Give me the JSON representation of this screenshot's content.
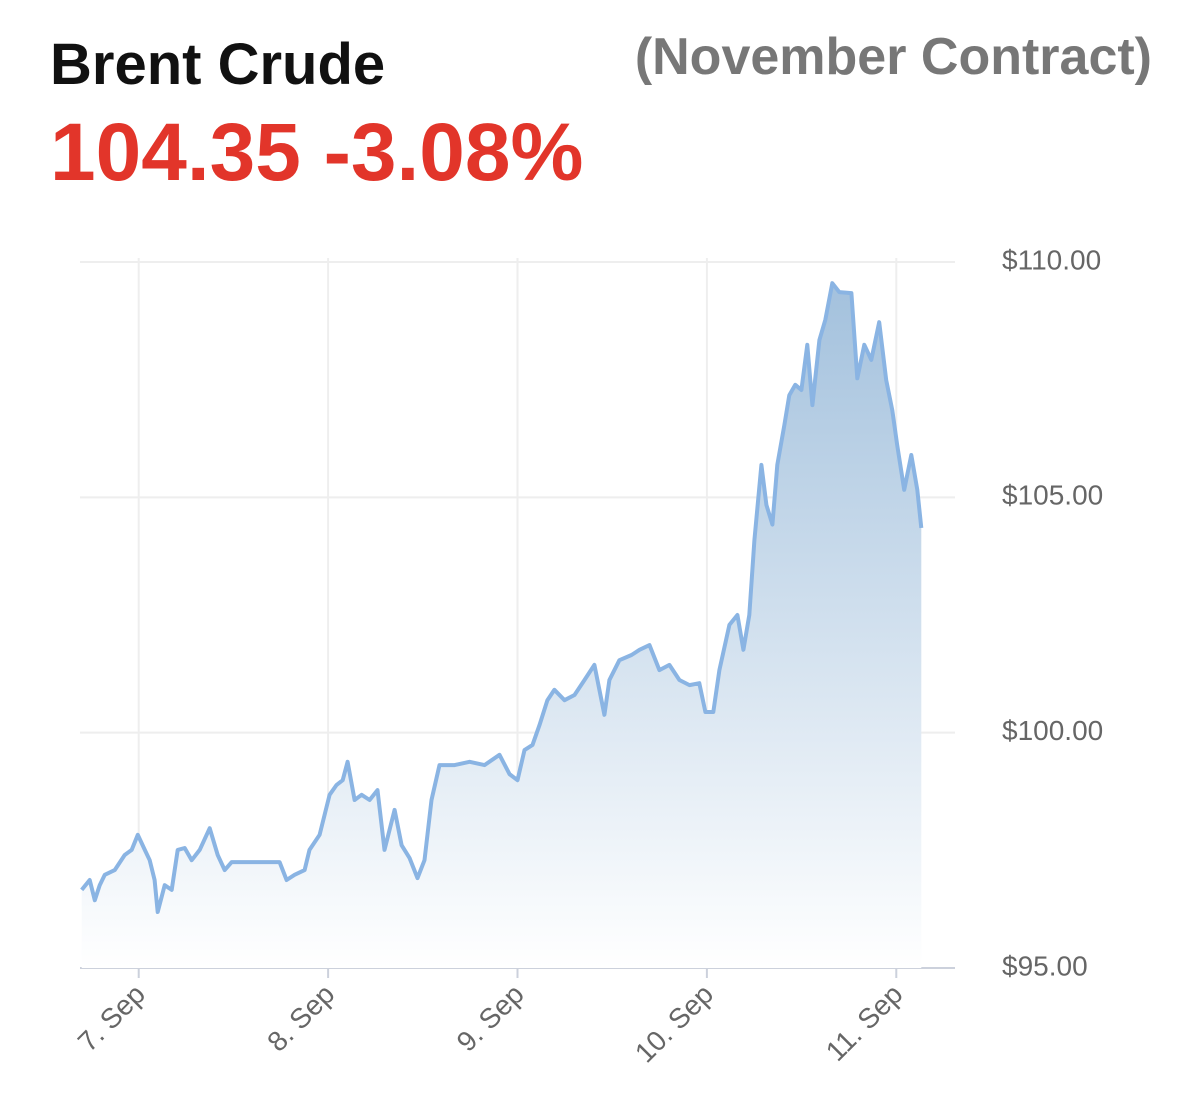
{
  "chart_data": {
    "type": "area",
    "title": "Brent Crude",
    "subtitle": "(November Contract)",
    "price_label": "104.35",
    "change_label": "-3.08%",
    "color": "#8ab4e3",
    "grid": true,
    "xlim": [
      6.69,
      11.31
    ],
    "xticks": [
      {
        "value": 7,
        "label": "7. Sep"
      },
      {
        "value": 8,
        "label": "8. Sep"
      },
      {
        "value": 9,
        "label": "9. Sep"
      },
      {
        "value": 10,
        "label": "10. Sep"
      },
      {
        "value": 11,
        "label": "11. Sep"
      }
    ],
    "ylim": [
      95,
      110
    ],
    "yticks": [
      {
        "value": 95,
        "label": "$95.00"
      },
      {
        "value": 100,
        "label": "$100.00"
      },
      {
        "value": 105,
        "label": "$105.00"
      },
      {
        "value": 110,
        "label": "$110.00"
      }
    ],
    "x": [
      6.699,
      6.741,
      6.768,
      6.794,
      6.821,
      6.873,
      6.926,
      6.963,
      6.995,
      7.032,
      7.058,
      7.084,
      7.1,
      7.137,
      7.174,
      7.206,
      7.243,
      7.28,
      7.322,
      7.375,
      7.417,
      7.454,
      7.491,
      7.744,
      7.781,
      7.823,
      7.876,
      7.902,
      7.955,
      8.008,
      8.045,
      8.077,
      8.103,
      8.14,
      8.177,
      8.219,
      8.261,
      8.298,
      8.351,
      8.388,
      8.43,
      8.472,
      8.509,
      8.546,
      8.588,
      8.668,
      8.747,
      8.826,
      8.905,
      8.958,
      9.0,
      9.037,
      9.079,
      9.116,
      9.158,
      9.195,
      9.248,
      9.301,
      9.354,
      9.406,
      9.459,
      9.485,
      9.538,
      9.602,
      9.644,
      9.697,
      9.749,
      9.802,
      9.855,
      9.908,
      9.96,
      9.992,
      10.034,
      10.066,
      10.119,
      10.161,
      10.193,
      10.224,
      10.251,
      10.288,
      10.314,
      10.346,
      10.372,
      10.409,
      10.435,
      10.467,
      10.499,
      10.53,
      10.557,
      10.594,
      10.625,
      10.662,
      10.699,
      10.763,
      10.794,
      10.831,
      10.868,
      10.91,
      10.947,
      10.979,
      11.005,
      11.042,
      11.079,
      11.111,
      11.132
    ],
    "values": [
      96.66,
      96.87,
      96.44,
      96.76,
      96.98,
      97.08,
      97.4,
      97.51,
      97.83,
      97.51,
      97.29,
      96.87,
      96.19,
      96.76,
      96.66,
      97.51,
      97.55,
      97.29,
      97.51,
      97.97,
      97.4,
      97.08,
      97.25,
      97.25,
      96.87,
      96.98,
      97.08,
      97.51,
      97.83,
      98.68,
      98.89,
      98.99,
      99.38,
      98.57,
      98.68,
      98.57,
      98.78,
      97.51,
      98.36,
      97.61,
      97.34,
      96.91,
      97.29,
      98.57,
      99.31,
      99.31,
      99.38,
      99.31,
      99.53,
      99.12,
      98.99,
      99.63,
      99.74,
      100.16,
      100.69,
      100.91,
      100.69,
      100.8,
      101.12,
      101.44,
      100.38,
      101.12,
      101.54,
      101.65,
      101.76,
      101.86,
      101.33,
      101.44,
      101.12,
      101.01,
      101.05,
      100.44,
      100.44,
      101.33,
      102.29,
      102.5,
      101.76,
      102.5,
      104.09,
      105.69,
      104.84,
      104.42,
      105.69,
      106.54,
      107.17,
      107.39,
      107.28,
      108.24,
      106.96,
      108.34,
      108.77,
      109.55,
      109.36,
      109.34,
      107.53,
      108.24,
      107.92,
      108.72,
      107.49,
      106.85,
      106.11,
      105.16,
      105.9,
      105.16,
      104.35
    ]
  }
}
